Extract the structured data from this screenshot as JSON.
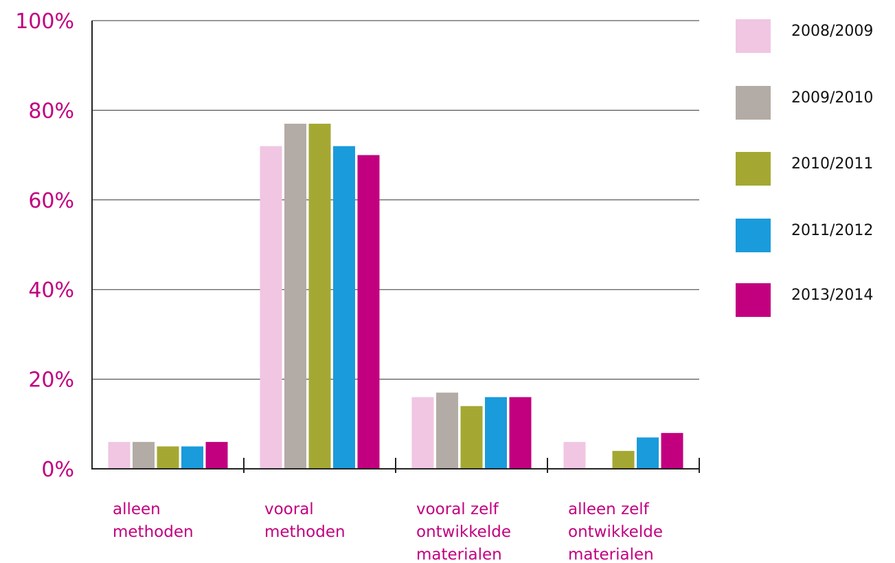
{
  "chart_data": {
    "type": "bar",
    "categories": [
      [
        "alleen",
        "methoden"
      ],
      [
        "vooral",
        "methoden"
      ],
      [
        "vooral zelf",
        "ontwikkelde",
        "materialen"
      ],
      [
        "alleen zelf",
        "ontwikkelde",
        "materialen"
      ]
    ],
    "series": [
      {
        "name": "2008/2009",
        "color": "#f0c6e2",
        "values": [
          6,
          72,
          16,
          6
        ]
      },
      {
        "name": "2009/2010",
        "color": "#b3aba5",
        "values": [
          6,
          77,
          17,
          null
        ]
      },
      {
        "name": "2010/2011",
        "color": "#a4a833",
        "values": [
          5,
          77,
          14,
          4
        ]
      },
      {
        "name": "2011/2012",
        "color": "#1a9bdc",
        "values": [
          5,
          72,
          16,
          7
        ]
      },
      {
        "name": "2013/2014",
        "color": "#c2007f",
        "values": [
          6,
          70,
          16,
          8
        ]
      }
    ],
    "yticks": [
      "0%",
      "20%",
      "40%",
      "60%",
      "80%",
      "100%"
    ],
    "ylim": [
      0,
      100
    ],
    "legend": "right",
    "grid": true
  }
}
